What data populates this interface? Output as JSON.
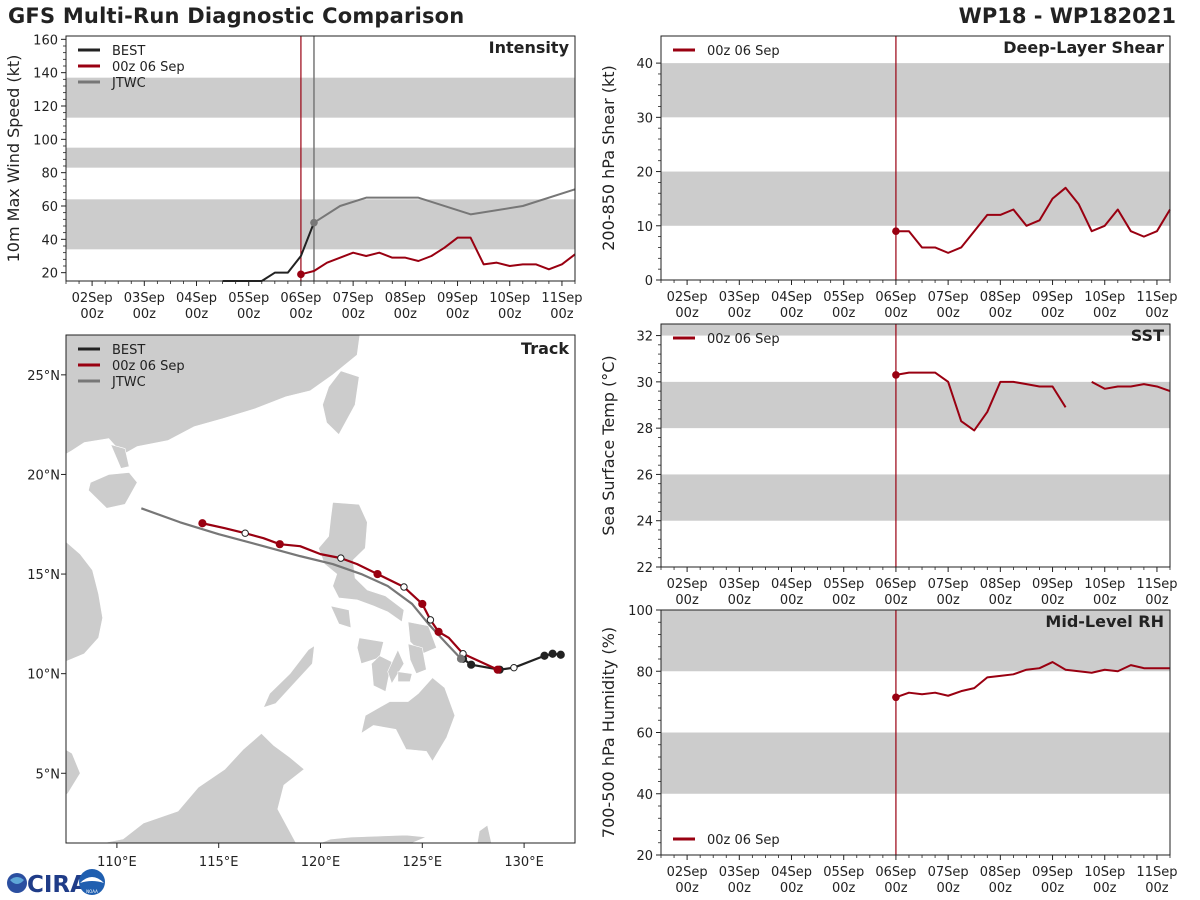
{
  "header": {
    "title": "GFS Multi-Run Diagnostic Comparison",
    "storm_id": "WP18 - WP182021"
  },
  "logo": {
    "text": "CIRA",
    "subtext": "NOAA"
  },
  "time_axis": {
    "labels": [
      "02Sep\n00z",
      "03Sep\n00z",
      "04Sep\n00z",
      "05Sep\n00z",
      "06Sep\n00z",
      "07Sep\n00z",
      "08Sep\n00z",
      "09Sep\n00z",
      "10Sep\n00z",
      "11Sep\n00z"
    ],
    "xlim": [
      -0.5,
      9.25
    ],
    "init_day": 4
  },
  "chart_data": [
    {
      "id": "intensity",
      "type": "line",
      "title": "Intensity",
      "ylabel": "10m Max Wind Speed (kt)",
      "ylim": [
        15,
        162
      ],
      "yticks": [
        20,
        40,
        60,
        80,
        100,
        120,
        140,
        160
      ],
      "bands": [
        [
          34,
          64
        ],
        [
          83,
          95
        ],
        [
          113,
          137
        ]
      ],
      "legend": [
        "BEST",
        "00z 06 Sep",
        "JTWC"
      ],
      "extra_vline": 4.25,
      "series": [
        {
          "name": "BEST",
          "color": "#222222",
          "x": [
            2.5,
            2.75,
            3.0,
            3.25,
            3.5,
            3.75,
            4.0,
            4.25
          ],
          "y": [
            15,
            15,
            15,
            15,
            20,
            20,
            30,
            50
          ]
        },
        {
          "name": "00z 06 Sep",
          "color": "#990011",
          "marker_first": true,
          "x": [
            4.0,
            4.25,
            4.5,
            4.75,
            5.0,
            5.25,
            5.5,
            5.75,
            6.0,
            6.25,
            6.5,
            6.75,
            7.0,
            7.25,
            7.5,
            7.75,
            8.0,
            8.25,
            8.5,
            8.75,
            9.0,
            9.25
          ],
          "y": [
            19,
            21,
            26,
            29,
            32,
            30,
            32,
            29,
            29,
            27,
            30,
            35,
            41,
            41,
            25,
            26,
            24,
            25,
            25,
            22,
            25,
            31
          ]
        },
        {
          "name": "JTWC",
          "color": "#777777",
          "marker_first": true,
          "x": [
            4.25,
            4.75,
            5.25,
            6.25,
            7.25,
            8.25,
            9.25
          ],
          "y": [
            50,
            60,
            65,
            65,
            55,
            60,
            70
          ]
        }
      ]
    },
    {
      "id": "shear",
      "type": "line",
      "title": "Deep-Layer Shear",
      "ylabel": "200-850 hPa Shear (kt)",
      "ylim": [
        0,
        45
      ],
      "yticks": [
        0,
        10,
        20,
        30,
        40
      ],
      "bands": [
        [
          10,
          20
        ],
        [
          30,
          40
        ]
      ],
      "legend": [
        "00z 06 Sep"
      ],
      "series": [
        {
          "name": "00z 06 Sep",
          "color": "#990011",
          "marker_first": true,
          "x": [
            4.0,
            4.25,
            4.5,
            4.75,
            5.0,
            5.25,
            5.5,
            5.75,
            6.0,
            6.25,
            6.5,
            6.75,
            7.0,
            7.25,
            7.5,
            7.75,
            8.0,
            8.25,
            8.5,
            8.75,
            9.0,
            9.25
          ],
          "y": [
            9,
            9,
            6,
            6,
            5,
            6,
            9,
            12,
            12,
            13,
            10,
            11,
            15,
            17,
            14,
            9,
            10,
            13,
            9,
            8,
            9,
            13
          ]
        }
      ]
    },
    {
      "id": "sst",
      "type": "line",
      "title": "SST",
      "ylabel": "Sea Surface Temp (°C)",
      "ylim": [
        22,
        32.5
      ],
      "yticks": [
        22,
        24,
        26,
        28,
        30,
        32
      ],
      "bands": [
        [
          24,
          26
        ],
        [
          28,
          30
        ],
        [
          32,
          32.5
        ]
      ],
      "legend": [
        "00z 06 Sep"
      ],
      "series": [
        {
          "name": "00z 06 Sep",
          "color": "#990011",
          "marker_first": true,
          "segments": [
            {
              "x": [
                4.0,
                4.25,
                4.5,
                4.75,
                5.0,
                5.25,
                5.5,
                5.75,
                6.0,
                6.25,
                6.5,
                6.75,
                7.0,
                7.25
              ],
              "y": [
                30.3,
                30.4,
                30.4,
                30.4,
                30.0,
                28.3,
                27.9,
                28.7,
                30.0,
                30.0,
                29.9,
                29.8,
                29.8,
                28.9
              ]
            },
            {
              "x": [
                7.75,
                8.0,
                8.25,
                8.5,
                8.75,
                9.0,
                9.25
              ],
              "y": [
                30.0,
                29.7,
                29.8,
                29.8,
                29.9,
                29.8,
                29.6
              ]
            }
          ]
        }
      ]
    },
    {
      "id": "rh",
      "type": "line",
      "title": "Mid-Level RH",
      "ylabel": "700-500 hPa Humidity (%)",
      "ylim": [
        20,
        100
      ],
      "yticks": [
        20,
        40,
        60,
        80,
        100
      ],
      "bands": [
        [
          40,
          60
        ],
        [
          80,
          100
        ]
      ],
      "legend": [
        "00z 06 Sep"
      ],
      "legend_position": "bottom-left",
      "series": [
        {
          "name": "00z 06 Sep",
          "color": "#990011",
          "marker_first": true,
          "x": [
            4.0,
            4.25,
            4.5,
            4.75,
            5.0,
            5.25,
            5.5,
            5.75,
            6.0,
            6.25,
            6.5,
            6.75,
            7.0,
            7.25,
            7.5,
            7.75,
            8.0,
            8.25,
            8.5,
            8.75,
            9.0,
            9.25
          ],
          "y": [
            71.5,
            73,
            72.5,
            73,
            72,
            73.5,
            74.5,
            78,
            78.5,
            79,
            80.5,
            81,
            83,
            80.5,
            80,
            79.5,
            80.5,
            80,
            82,
            81,
            81,
            81
          ]
        }
      ]
    },
    {
      "id": "track",
      "type": "scatter",
      "title": "Track",
      "xlim": [
        107.5,
        132.5
      ],
      "ylim": [
        1.5,
        27
      ],
      "xticks": [
        110,
        115,
        120,
        125,
        130
      ],
      "xtick_labels": [
        "110°E",
        "115°E",
        "120°E",
        "125°E",
        "130°E"
      ],
      "yticks": [
        5,
        10,
        15,
        20,
        25
      ],
      "ytick_labels": [
        "5°N",
        "10°N",
        "15°N",
        "20°N",
        "25°N"
      ],
      "legend": [
        "BEST",
        "00z 06 Sep",
        "JTWC"
      ],
      "series": [
        {
          "name": "BEST",
          "color": "#222222",
          "lon": [
            131.8,
            131.4,
            131.0,
            129.5,
            128.8,
            127.4,
            127.0
          ],
          "lat": [
            10.95,
            11.0,
            10.9,
            10.3,
            10.2,
            10.45,
            10.75
          ],
          "markers": [
            "filled",
            "filled",
            "filled",
            "open",
            "filled",
            "filled",
            "filled"
          ]
        },
        {
          "name": "00z 06 Sep",
          "color": "#990011",
          "lon": [
            128.7,
            127.0,
            126.3,
            125.8,
            125.4,
            125.0,
            124.1,
            122.8,
            121.8,
            121.0,
            120.0,
            119.0,
            118.0,
            117.2,
            116.3,
            115.3,
            114.2
          ],
          "lat": [
            10.2,
            11.0,
            11.8,
            12.1,
            12.7,
            13.5,
            14.35,
            15.0,
            15.5,
            15.8,
            16.0,
            16.4,
            16.5,
            16.8,
            17.05,
            17.3,
            17.55
          ],
          "markers": [
            "filled",
            "open",
            "none",
            "filled",
            "open",
            "filled",
            "open",
            "filled",
            "none",
            "open",
            "none",
            "none",
            "filled",
            "none",
            "open",
            "none",
            "filled"
          ]
        },
        {
          "name": "JTWC",
          "color": "#777777",
          "lon": [
            126.9,
            126.2,
            125.3,
            124.5,
            123.3,
            122.0,
            120.6,
            119.0,
            117.2,
            115.0,
            113.1,
            111.2
          ],
          "lat": [
            10.75,
            11.5,
            12.5,
            13.5,
            14.4,
            15.0,
            15.5,
            15.9,
            16.4,
            17.0,
            17.6,
            18.3
          ],
          "markers": [
            "filled",
            "none",
            "none",
            "none",
            "none",
            "none",
            "none",
            "none",
            "none",
            "none",
            "none",
            "none"
          ]
        }
      ]
    }
  ]
}
